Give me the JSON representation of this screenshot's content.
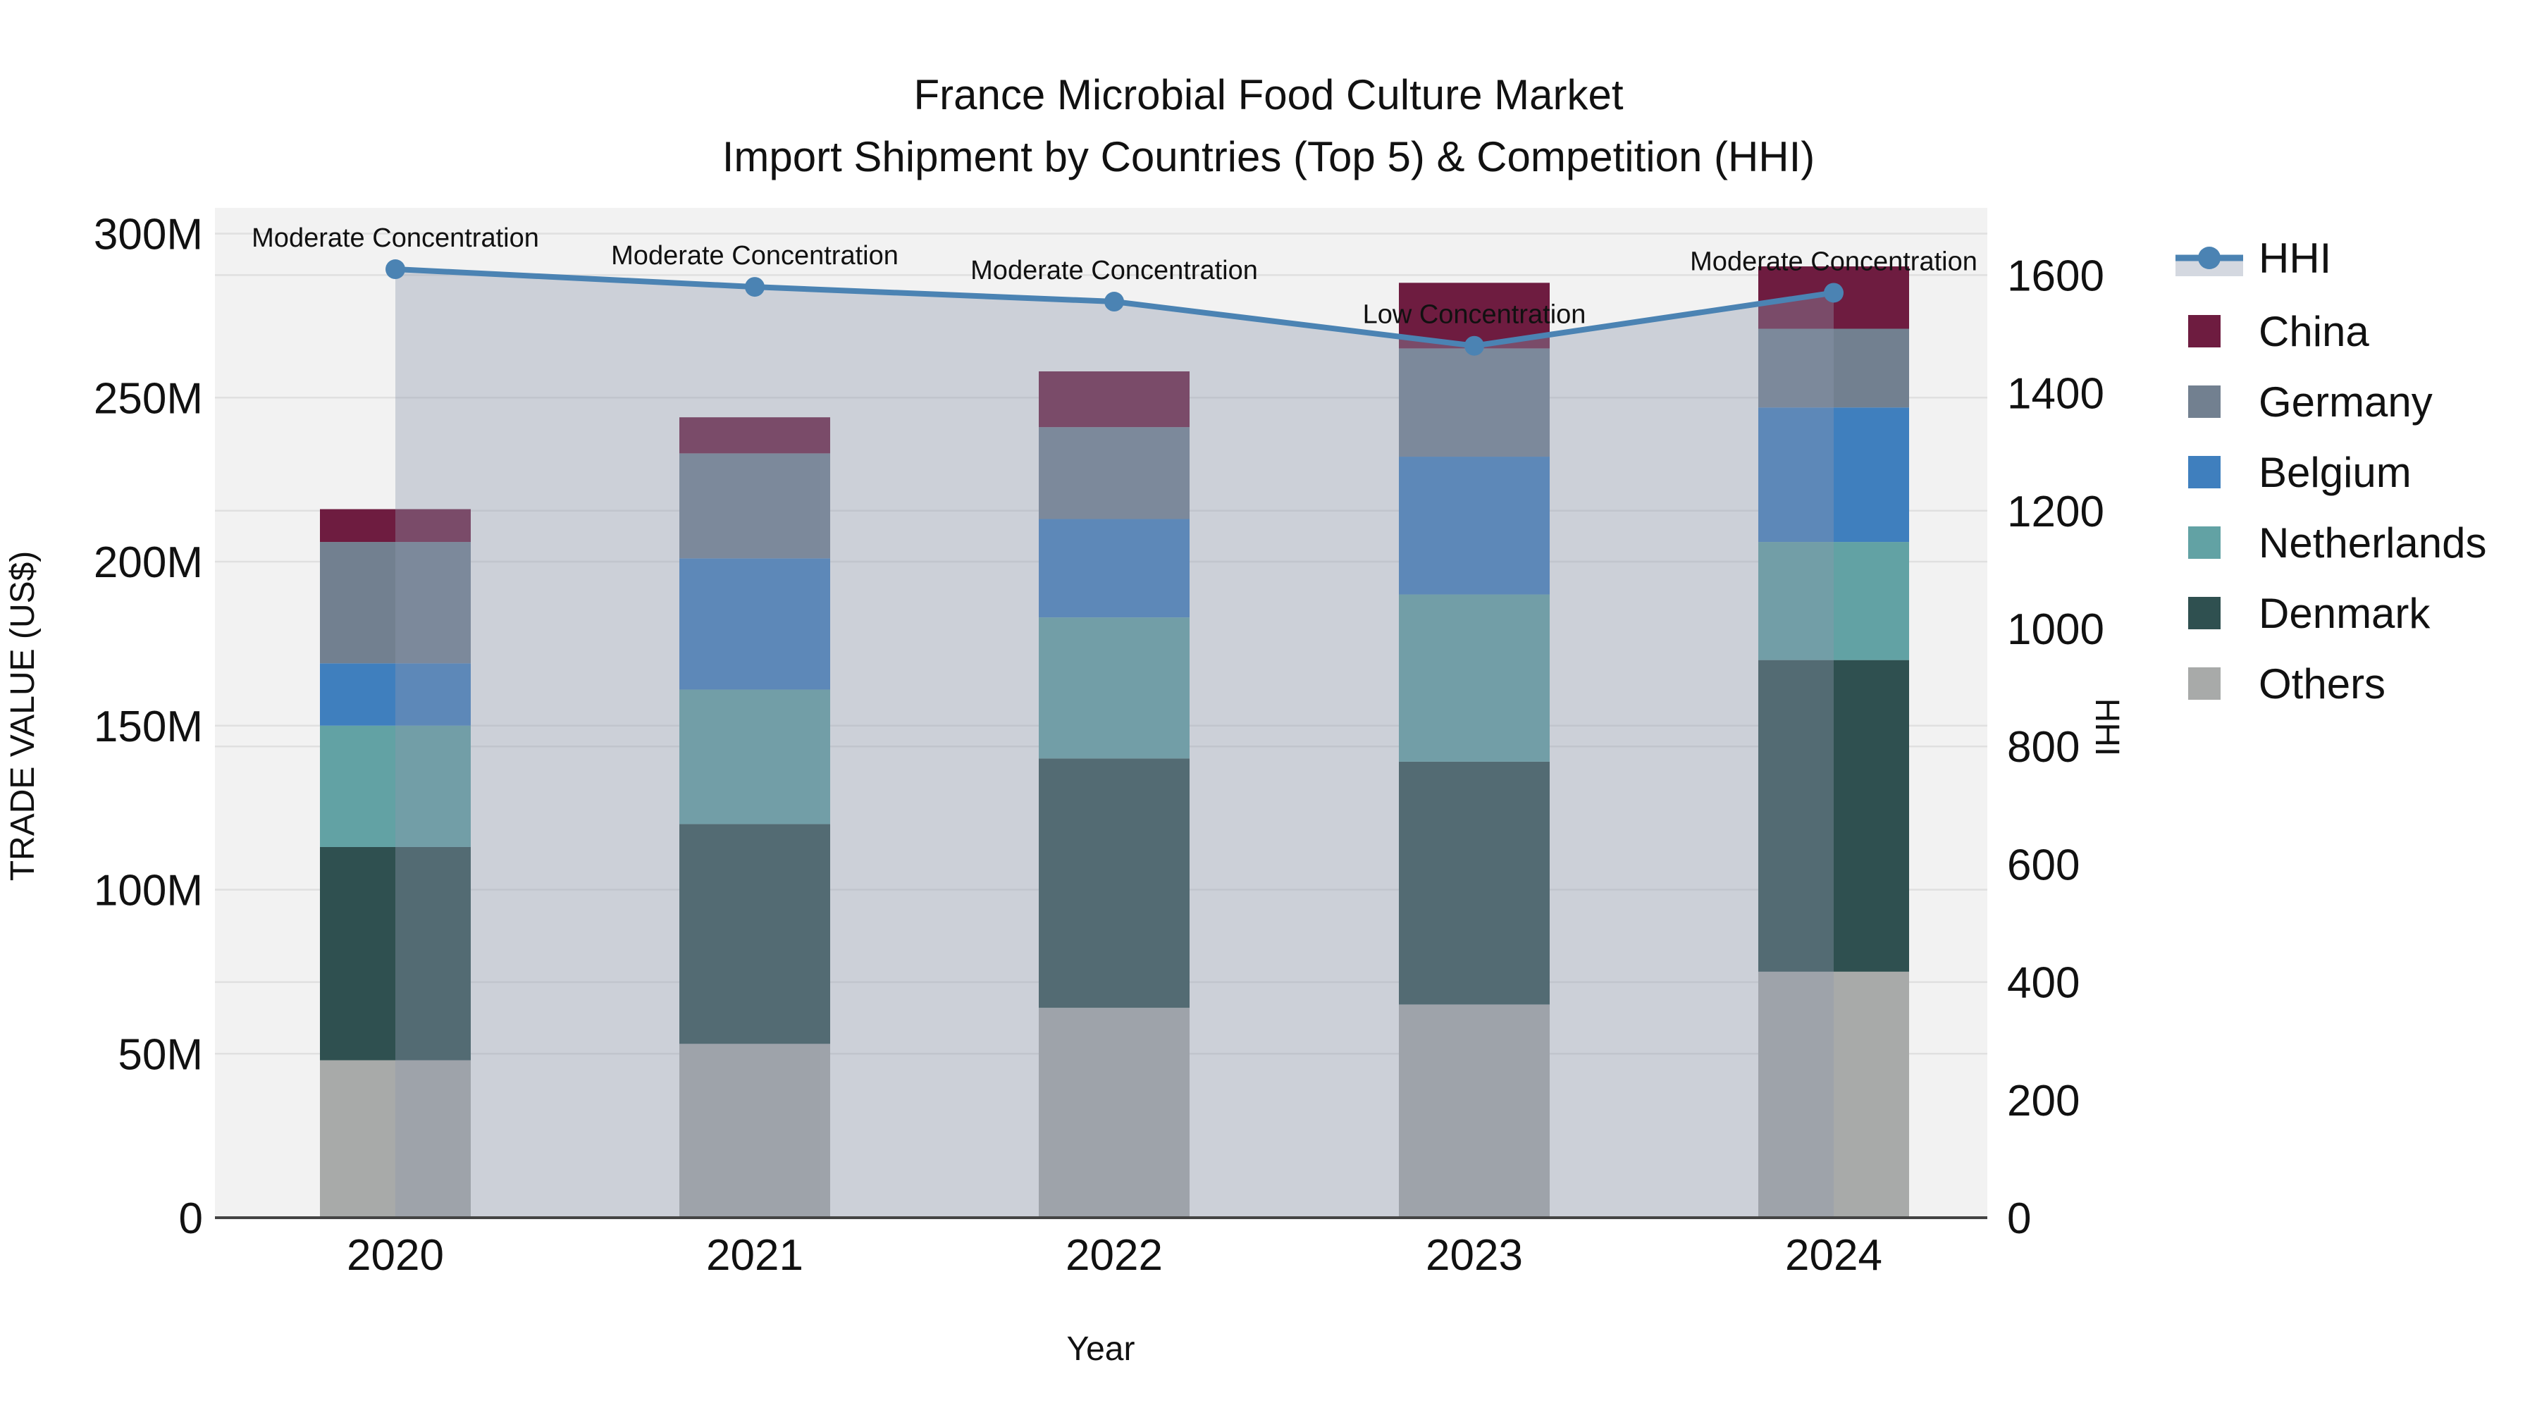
{
  "title": {
    "line1": "France Microbial Food Culture Market",
    "line2": "Import Shipment by Countries (Top 5) & Competition (HHI)"
  },
  "chart_data": {
    "type": "bar+line",
    "title": "France Microbial Food Culture Market Import Shipment by Countries (Top 5) & Competition (HHI)",
    "categories": [
      "2020",
      "2021",
      "2022",
      "2023",
      "2024"
    ],
    "value_unit": "M US$",
    "series": [
      {
        "name": "China",
        "color": "#6e1c40",
        "values": [
          10,
          11,
          17,
          20,
          19
        ]
      },
      {
        "name": "Germany",
        "color": "#728090",
        "values": [
          37,
          32,
          28,
          33,
          24
        ]
      },
      {
        "name": "Belgium",
        "color": "#3f7fbe",
        "values": [
          19,
          40,
          30,
          42,
          41
        ]
      },
      {
        "name": "Netherlands",
        "color": "#62a2a4",
        "values": [
          37,
          41,
          43,
          51,
          36
        ]
      },
      {
        "name": "Denmark",
        "color": "#2f5050",
        "values": [
          65,
          67,
          76,
          74,
          95
        ]
      },
      {
        "name": "Others",
        "color": "#a8aaa9",
        "values": [
          48,
          53,
          64,
          65,
          75
        ]
      }
    ],
    "stack_totals": [
      216,
      244,
      258,
      285,
      290
    ],
    "stack_order_bottom_to_top": [
      "Others",
      "Denmark",
      "Netherlands",
      "Belgium",
      "Germany",
      "China"
    ],
    "line_series": {
      "name": "HHI",
      "color": "#4b83b3",
      "area_color": "#8d99ad",
      "area_opacity": 0.38,
      "values": [
        1610,
        1580,
        1555,
        1480,
        1570
      ]
    },
    "annotations": [
      {
        "category": "2020",
        "text": "Moderate Concentration"
      },
      {
        "category": "2021",
        "text": "Moderate Concentration"
      },
      {
        "category": "2022",
        "text": "Moderate Concentration"
      },
      {
        "category": "2023",
        "text": "Low Concentration"
      },
      {
        "category": "2024",
        "text": "Moderate Concentration"
      }
    ],
    "axes": {
      "x": {
        "label": "Year",
        "tick_labels": [
          "2020",
          "2021",
          "2022",
          "2023",
          "2024"
        ]
      },
      "y_left": {
        "label": "TRADE VALUE (US$)",
        "range": [
          0,
          300
        ],
        "ticks": [
          {
            "v": 0,
            "label": "0"
          },
          {
            "v": 50,
            "label": "50M"
          },
          {
            "v": 100,
            "label": "100M"
          },
          {
            "v": 150,
            "label": "150M"
          },
          {
            "v": 200,
            "label": "200M"
          },
          {
            "v": 250,
            "label": "250M"
          },
          {
            "v": 300,
            "label": "300M"
          }
        ]
      },
      "y_right": {
        "label": "HHI",
        "range": [
          0,
          1715
        ],
        "ticks": [
          {
            "v": 0,
            "label": "0"
          },
          {
            "v": 200,
            "label": "200"
          },
          {
            "v": 400,
            "label": "400"
          },
          {
            "v": 600,
            "label": "600"
          },
          {
            "v": 800,
            "label": "800"
          },
          {
            "v": 1000,
            "label": "1000"
          },
          {
            "v": 1200,
            "label": "1200"
          },
          {
            "v": 1400,
            "label": "1400"
          },
          {
            "v": 1600,
            "label": "1600"
          }
        ],
        "grid_ticks": [
          400,
          800,
          1200,
          1600
        ]
      },
      "grid_on": true
    },
    "legend": {
      "position": "right",
      "items": [
        "HHI",
        "China",
        "Germany",
        "Belgium",
        "Netherlands",
        "Denmark",
        "Others"
      ]
    }
  },
  "colors": {
    "figure_bg": "#ffffff",
    "plot_bg": "#f2f2f2",
    "grid": "#e0e0e0",
    "axis_line": "#444444",
    "text": "#111111"
  }
}
